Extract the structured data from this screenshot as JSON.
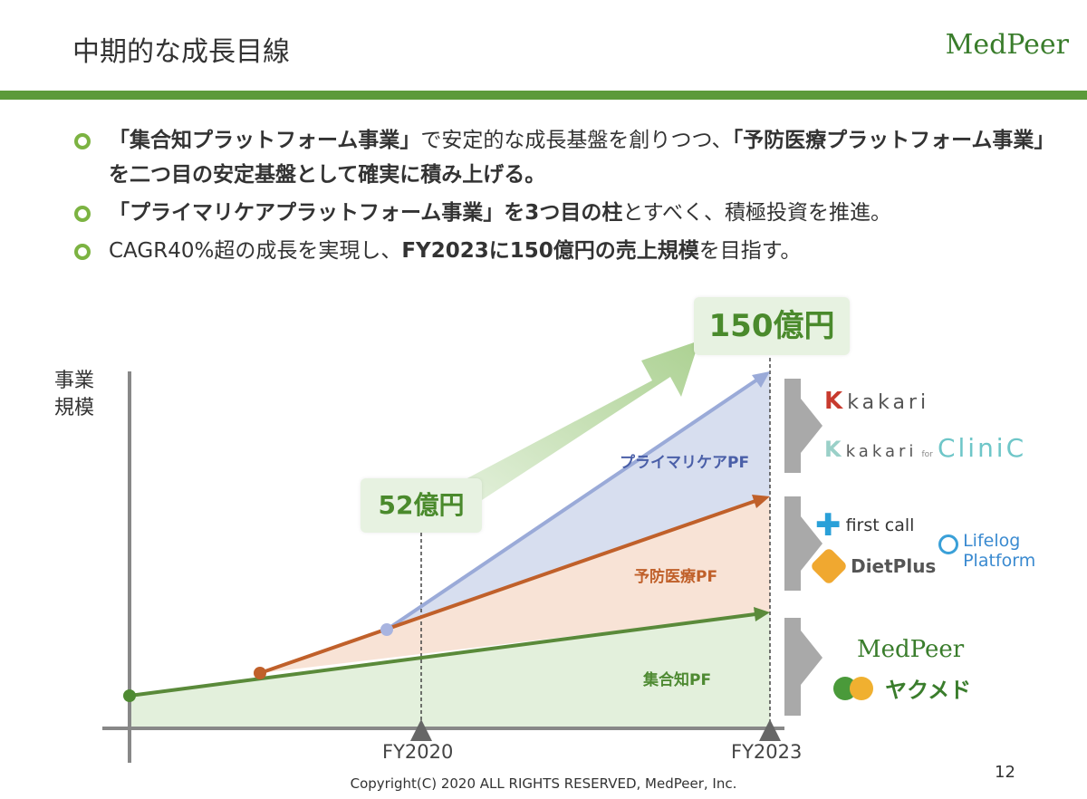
{
  "header": {
    "title": "中期的な成長目線",
    "brand": "MedPeer"
  },
  "bullets": [
    {
      "parts": [
        {
          "text": "「集合知プラットフォーム事業」",
          "bold": true
        },
        {
          "text": "で安定的な成長基盤を創りつつ、",
          "bold": false
        },
        {
          "text": "「予防医療プラットフォーム事業」を二つ目の安定基盤として確実に積み上げる。",
          "bold": true
        }
      ]
    },
    {
      "parts": [
        {
          "text": "「プライマリケアプラットフォーム事業」を3つ目の柱",
          "bold": true
        },
        {
          "text": "とすべく、積極投資を推進。",
          "bold": false
        }
      ]
    },
    {
      "parts": [
        {
          "text": "CAGR40%超の成長を実現し、",
          "bold": false
        },
        {
          "text": "FY2023に150億円の売上規模",
          "bold": true
        },
        {
          "text": "を目指す。",
          "bold": false
        }
      ]
    }
  ],
  "diagram": {
    "y_axis_label": "事業\n規模",
    "callout_now": "52億円",
    "callout_target": "150億円",
    "x_ticks": [
      "FY2020",
      "FY2023"
    ],
    "segments": [
      {
        "name": "プライマリケアPF",
        "color": "#4a5fa8",
        "fill": "#d7deef",
        "line": "#9aaad8"
      },
      {
        "name": "予防医療PF",
        "color": "#c0602a",
        "fill": "#f8e3d6",
        "line": "#c0602a"
      },
      {
        "name": "集合知PF",
        "color": "#4e8a32",
        "fill": "#e3f0dc",
        "line": "#5a8a3a"
      }
    ],
    "logos": {
      "primary_care": [
        "Kakari",
        "Kakari for CliniC"
      ],
      "kakari_word": "kakari",
      "kakari_for": "for",
      "kakari_clinic": "CliniC",
      "preventive": [
        "first call",
        "DietPlus",
        "Lifelog Platform"
      ],
      "lifelog_line1": "Lifelog",
      "lifelog_line2": "Platform",
      "collective": [
        "MedPeer",
        "ヤクメド"
      ]
    }
  },
  "footer": {
    "copyright": "Copyright(C) 2020 ALL RIGHTS RESERVED, MedPeer, Inc.",
    "page_number": "12"
  }
}
